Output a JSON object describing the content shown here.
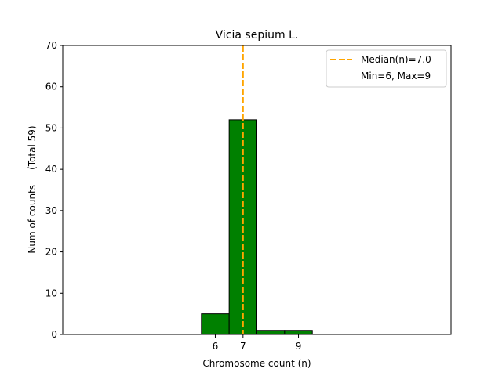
{
  "chart_data": {
    "type": "bar",
    "title": "Vicia sepium L.",
    "xlabel": "Chromosome count (n)",
    "ylabel": "Num of counts     (Total 59)",
    "xlim": [
      0.5,
      14.5
    ],
    "ylim": [
      0,
      70
    ],
    "yticks": [
      0,
      10,
      20,
      30,
      40,
      50,
      60,
      70
    ],
    "xticks": [
      6,
      7,
      9
    ],
    "bin_width": 1,
    "bars": [
      {
        "x": 6,
        "value": 5
      },
      {
        "x": 7,
        "value": 52
      },
      {
        "x": 8,
        "value": 1
      },
      {
        "x": 9,
        "value": 1
      },
      {
        "x": 10,
        "value": 0
      },
      {
        "x": 11,
        "value": 0
      },
      {
        "x": 12,
        "value": 0
      },
      {
        "x": 13,
        "value": 0
      }
    ],
    "baseline_x": [
      1.5,
      13.5
    ],
    "median": 7.0,
    "colors": {
      "bar_fill": "#008000",
      "bar_edge": "#000000",
      "median_line": "#ffa500"
    },
    "legend": {
      "placement": "top-right",
      "entries": [
        "Median(n)=7.0",
        "Min=6, Max=9"
      ]
    }
  }
}
